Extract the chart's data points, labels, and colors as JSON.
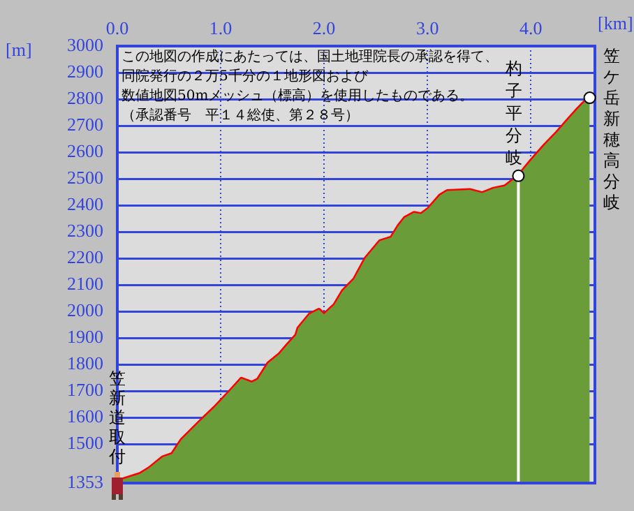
{
  "chart_data": {
    "type": "area",
    "xlabel": "[km]",
    "ylabel": "[m]",
    "x": [
      0.05,
      0.22,
      0.31,
      0.44,
      0.53,
      0.62,
      0.8,
      0.94,
      1.09,
      1.2,
      1.3,
      1.36,
      1.46,
      1.57,
      1.64,
      1.73,
      1.75,
      1.86,
      1.95,
      2.0,
      2.1,
      2.18,
      2.29,
      2.4,
      2.54,
      2.65,
      2.72,
      2.78,
      2.87,
      2.94,
      3.01,
      3.12,
      3.19,
      3.41,
      3.53,
      3.64,
      3.75,
      3.88,
      4.0,
      4.14,
      4.25,
      4.34,
      4.45,
      4.55,
      4.57
    ],
    "series": [
      {
        "color": "#6a9c3a",
        "values": [
          1367,
          1388,
          1410,
          1451,
          1463,
          1516,
          1586,
          1638,
          1700,
          1747,
          1732,
          1744,
          1805,
          1840,
          1872,
          1911,
          1937,
          1989,
          2007,
          1989,
          2025,
          2077,
          2121,
          2200,
          2265,
          2279,
          2323,
          2353,
          2372,
          2367,
          2388,
          2437,
          2454,
          2458,
          2446,
          2463,
          2472,
          2511,
          2568,
          2630,
          2674,
          2714,
          2762,
          2802,
          2805
        ]
      },
      {
        "type": "line",
        "color": "#ff0000",
        "values": [
          1367,
          1388,
          1410,
          1451,
          1463,
          1516,
          1586,
          1638,
          1700,
          1747,
          1732,
          1744,
          1805,
          1840,
          1872,
          1911,
          1937,
          1989,
          2007,
          1989,
          2025,
          2077,
          2121,
          2200,
          2265,
          2279,
          2323,
          2353,
          2372,
          2367,
          2388,
          2437,
          2454,
          2458,
          2446,
          2463,
          2472,
          2511,
          2568,
          2630,
          2674,
          2714,
          2762,
          2802,
          2805
        ]
      }
    ],
    "xlim": [
      0,
      4.62
    ],
    "xticks": [
      {
        "value": 0,
        "label": "0.0"
      },
      {
        "value": 1,
        "label": "1.0"
      },
      {
        "value": 2,
        "label": "2.0"
      },
      {
        "value": 3,
        "label": "3.0"
      },
      {
        "value": 4,
        "label": "4.0"
      }
    ],
    "ylim": [
      1353,
      3000
    ],
    "yticks": [
      1353,
      1500,
      1600,
      1700,
      1800,
      1900,
      2000,
      2100,
      2200,
      2300,
      2400,
      2500,
      2600,
      2700,
      2800,
      2900,
      3000
    ],
    "grid": true,
    "ref_lines": [
      {
        "axis": "x",
        "value": 3.88,
        "color": "#ffffff"
      }
    ],
    "annotations": [
      "この地図の作成にあたっては、国土地理院長の承認を得て、",
      "同院発行の２万5千分の１地形図および",
      "数値地図50mメッシュ（標高）を使用したものである。",
      "（承認番号　平１４総使、第２８号）",
      {
        "text": "笠新道取付",
        "x": 0,
        "y": 1353
      },
      {
        "text": "杓子平分岐",
        "x": 3.88,
        "y": 2511
      },
      {
        "text": "笠ケ岳新穂高分岐",
        "x": 4.57,
        "y": 2805
      }
    ]
  }
}
